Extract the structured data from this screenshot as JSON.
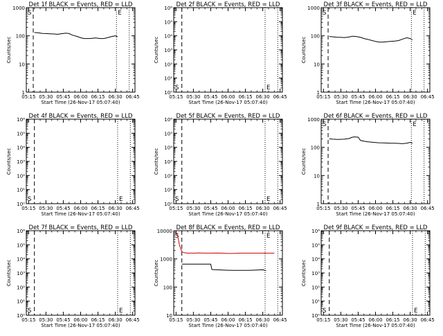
{
  "figure": {
    "xlabel": "Start Time (26-Nov-17 05:07:40)",
    "ylabel": "Counts/sec",
    "x_tick_labels": [
      "05:15",
      "05:30",
      "05:45",
      "06:00",
      "06:15",
      "06:30",
      "06:45"
    ],
    "start_marker": "S",
    "end_marker": "E",
    "colors": {
      "black": "#000000",
      "red": "#cc0000",
      "background": "#ffffff"
    }
  },
  "chart_data": [
    {
      "type": "line",
      "title": "Det 1f BLACK = Events, RED = LLD",
      "y_scale": "log",
      "ylim": [
        1,
        1000
      ],
      "y_ticks": [
        1,
        10,
        100,
        1000
      ],
      "y_tick_labels": [
        "1",
        "10",
        "100",
        "1000"
      ],
      "xlim": [
        "05:13",
        "06:47"
      ],
      "vline_dashed": "05:19",
      "vline_dotted": [
        "06:31",
        "06:42"
      ],
      "series": [
        {
          "color": "#000000",
          "x": [
            "05:20",
            "05:23",
            "05:27",
            "05:30",
            "05:33",
            "05:37",
            "05:40",
            "05:43",
            "05:47",
            "05:50",
            "05:53",
            "05:57",
            "06:00",
            "06:03",
            "06:07",
            "06:10",
            "06:13",
            "06:17",
            "06:20",
            "06:23",
            "06:27",
            "06:30",
            "06:32"
          ],
          "values": [
            130,
            128,
            122,
            120,
            118,
            116,
            113,
            118,
            124,
            120,
            105,
            95,
            85,
            80,
            80,
            82,
            84,
            80,
            80,
            85,
            95,
            100,
            92
          ]
        }
      ]
    },
    {
      "type": "line",
      "title": "Det 2f BLACK = Events, RED = LLD",
      "y_scale": "log",
      "ylim": [
        1,
        1000000
      ],
      "y_ticks": [
        1,
        10,
        100,
        1000,
        10000,
        100000,
        1000000
      ],
      "y_tick_labels": [
        "10⁰",
        "10¹",
        "10²",
        "10³",
        "10⁴",
        "10⁵",
        "10⁶"
      ],
      "xlim": [
        "05:13",
        "06:47"
      ],
      "vline_dashed": "05:20",
      "vline_dotted": [
        "06:32",
        "06:43"
      ],
      "series": []
    },
    {
      "type": "line",
      "title": "Det 3f BLACK = Events, RED = LLD",
      "y_scale": "log",
      "ylim": [
        1,
        1000
      ],
      "y_ticks": [
        1,
        10,
        100,
        1000
      ],
      "y_tick_labels": [
        "1",
        "10",
        "100",
        "1000"
      ],
      "xlim": [
        "05:13",
        "06:47"
      ],
      "vline_dashed": "05:19",
      "vline_dotted": [
        "06:31",
        "06:42"
      ],
      "series": [
        {
          "color": "#000000",
          "x": [
            "05:20",
            "05:23",
            "05:27",
            "05:30",
            "05:33",
            "05:37",
            "05:40",
            "05:43",
            "05:47",
            "05:50",
            "05:53",
            "05:57",
            "06:00",
            "06:03",
            "06:07",
            "06:10",
            "06:13",
            "06:17",
            "06:20",
            "06:23",
            "06:27",
            "06:30",
            "06:32"
          ],
          "values": [
            95,
            92,
            88,
            88,
            86,
            90,
            97,
            95,
            88,
            80,
            75,
            68,
            63,
            60,
            60,
            62,
            63,
            65,
            68,
            75,
            85,
            80,
            72
          ]
        }
      ]
    },
    {
      "type": "line",
      "title": "Det 4f BLACK = Events, RED = LLD",
      "y_scale": "log",
      "ylim": [
        1,
        1000000
      ],
      "y_ticks": [
        1,
        10,
        100,
        1000,
        10000,
        100000,
        1000000
      ],
      "y_tick_labels": [
        "10⁰",
        "10¹",
        "10²",
        "10³",
        "10⁴",
        "10⁵",
        "10⁶"
      ],
      "xlim": [
        "05:13",
        "06:47"
      ],
      "vline_dashed": "05:20",
      "vline_dotted": [
        "06:32",
        "06:43"
      ],
      "series": []
    },
    {
      "type": "line",
      "title": "Det 5f BLACK = Events, RED = LLD",
      "y_scale": "log",
      "ylim": [
        1,
        1000000
      ],
      "y_ticks": [
        1,
        10,
        100,
        1000,
        10000,
        100000,
        1000000
      ],
      "y_tick_labels": [
        "10⁰",
        "10¹",
        "10²",
        "10³",
        "10⁴",
        "10⁵",
        "10⁶"
      ],
      "xlim": [
        "05:13",
        "06:47"
      ],
      "vline_dashed": "05:20",
      "vline_dotted": [
        "06:32",
        "06:43"
      ],
      "series": []
    },
    {
      "type": "line",
      "title": "Det 6f BLACK = Events, RED = LLD",
      "y_scale": "log",
      "ylim": [
        1,
        1000
      ],
      "y_ticks": [
        1,
        10,
        100,
        1000
      ],
      "y_tick_labels": [
        "1",
        "10",
        "100",
        "1000"
      ],
      "xlim": [
        "05:13",
        "06:47"
      ],
      "vline_dashed": "05:19",
      "vline_dotted": [
        "06:31",
        "06:42"
      ],
      "series": [
        {
          "color": "#000000",
          "x": [
            "05:20",
            "05:23",
            "05:27",
            "05:30",
            "05:33",
            "05:37",
            "05:40",
            "05:42",
            "05:45",
            "05:47",
            "05:50",
            "05:53",
            "05:57",
            "06:00",
            "06:03",
            "06:07",
            "06:10",
            "06:13",
            "06:17",
            "06:20",
            "06:23",
            "06:27",
            "06:30",
            "06:32"
          ],
          "values": [
            200,
            195,
            190,
            192,
            195,
            205,
            230,
            235,
            230,
            175,
            165,
            158,
            152,
            148,
            145,
            143,
            142,
            140,
            140,
            138,
            135,
            140,
            150,
            140
          ]
        }
      ]
    },
    {
      "type": "line",
      "title": "Det 7f BLACK = Events, RED = LLD",
      "y_scale": "log",
      "ylim": [
        1,
        1000000
      ],
      "y_ticks": [
        1,
        10,
        100,
        1000,
        10000,
        100000,
        1000000
      ],
      "y_tick_labels": [
        "10⁰",
        "10¹",
        "10²",
        "10³",
        "10⁴",
        "10⁵",
        "10⁶"
      ],
      "xlim": [
        "05:13",
        "06:47"
      ],
      "vline_dashed": "05:20",
      "vline_dotted": [
        "06:32",
        "06:43"
      ],
      "series": []
    },
    {
      "type": "line",
      "title": "Det 8f BLACK = Events, RED = LLD",
      "y_scale": "log",
      "ylim": [
        10,
        10000
      ],
      "y_ticks": [
        10,
        100,
        1000,
        10000
      ],
      "y_tick_labels": [
        "10",
        "100",
        "1000",
        "10000"
      ],
      "xlim": [
        "05:13",
        "06:47"
      ],
      "vline_dashed": "05:20",
      "vline_dotted": [
        "06:32",
        "06:43"
      ],
      "series": [
        {
          "color": "#cc0000",
          "x": [
            "05:14",
            "05:16",
            "05:18",
            "05:20",
            "05:22",
            "05:25",
            "05:30",
            "05:35",
            "05:40",
            "05:45",
            "05:50",
            "05:55",
            "06:00",
            "06:05",
            "06:10",
            "06:15",
            "06:20",
            "06:25",
            "06:30",
            "06:35",
            "06:40"
          ],
          "values": [
            9000,
            8000,
            3000,
            1800,
            1650,
            1600,
            1600,
            1620,
            1600,
            1600,
            1610,
            1600,
            1550,
            1570,
            1600,
            1600,
            1600,
            1600,
            1600,
            1600,
            1600
          ]
        },
        {
          "color": "#000000",
          "x": [
            "05:20",
            "05:25",
            "05:30",
            "05:35",
            "05:40",
            "05:45",
            "05:46",
            "05:50",
            "05:55",
            "06:00",
            "06:05",
            "06:10",
            "06:15",
            "06:20",
            "06:25",
            "06:30",
            "06:33"
          ],
          "values": [
            650,
            650,
            650,
            650,
            650,
            650,
            420,
            410,
            400,
            395,
            390,
            390,
            390,
            395,
            400,
            410,
            380
          ]
        }
      ]
    },
    {
      "type": "line",
      "title": "Det 9f BLACK = Events, RED = LLD",
      "y_scale": "log",
      "ylim": [
        1,
        1000000
      ],
      "y_ticks": [
        1,
        10,
        100,
        1000,
        10000,
        100000,
        1000000
      ],
      "y_tick_labels": [
        "10⁰",
        "10¹",
        "10²",
        "10³",
        "10⁴",
        "10⁵",
        "10⁶"
      ],
      "xlim": [
        "05:13",
        "06:47"
      ],
      "vline_dashed": "05:20",
      "vline_dotted": [
        "06:32",
        "06:43"
      ],
      "series": []
    }
  ]
}
